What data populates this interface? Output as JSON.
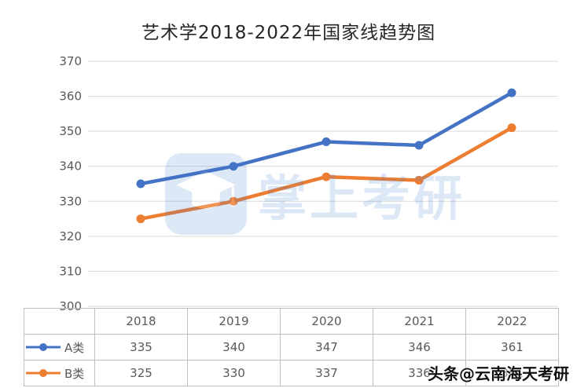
{
  "watermark": {
    "logo": "graduation-cap-icon",
    "text": "掌上考研",
    "byline": "头条@云南海天考研"
  },
  "chart_data": {
    "type": "line",
    "title": "艺术学2018-2022年国家线趋势图",
    "categories": [
      "2018",
      "2019",
      "2020",
      "2021",
      "2022"
    ],
    "series": [
      {
        "name": "A类",
        "values": [
          335,
          340,
          347,
          346,
          361
        ],
        "color": "#4472C4"
      },
      {
        "name": "B类",
        "values": [
          325,
          330,
          337,
          336,
          351
        ],
        "color": "#ED7D31"
      }
    ],
    "ylim": [
      300,
      370
    ],
    "ytick_step": 10,
    "grid": true,
    "legend_position": "table-left",
    "colors": {
      "grid": "#D9D9D9",
      "axis_text": "#595959",
      "table_border": "#BFBFBF",
      "table_text": "#595959",
      "title_text": "#262626",
      "watermark_blue": "#3A7BD5"
    }
  }
}
